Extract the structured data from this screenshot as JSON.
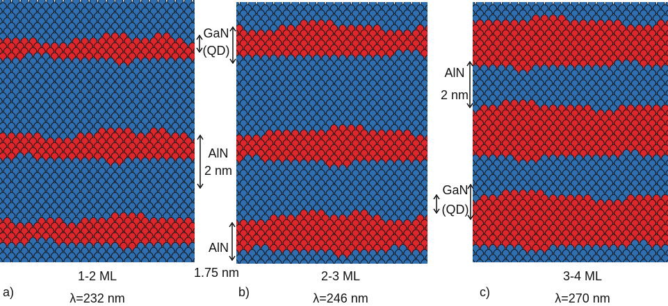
{
  "colors": {
    "gan": "#e0262a",
    "aln": "#2d6fb0",
    "atom_stroke": "#0a0a0a",
    "background": "#ffffff"
  },
  "panels": [
    {
      "letter": "a)",
      "ml": "1-2 ML",
      "wavelength": "λ=232 nm",
      "qd_rows": [
        [
          8,
          11
        ],
        [
          27,
          31
        ],
        [
          44,
          48
        ]
      ]
    },
    {
      "letter": "b)",
      "ml": "2-3 ML",
      "wavelength": "λ=246 nm",
      "qd_rows": [
        [
          5,
          10
        ],
        [
          26,
          31
        ],
        [
          43,
          49
        ]
      ]
    },
    {
      "letter": "c)",
      "ml": "3-4 ML",
      "wavelength": "λ=270 nm",
      "qd_rows": [
        [
          4,
          12
        ],
        [
          21,
          30
        ],
        [
          39,
          48
        ]
      ]
    }
  ],
  "annotations": {
    "gan_qd_a": {
      "line1": "GaN",
      "line2": "(QD)"
    },
    "aln_2nm_a": {
      "line1": "AlN",
      "line2": "2 nm"
    },
    "aln_bottom": {
      "line1": "AlN",
      "line2": "1.75 nm"
    },
    "aln_2nm_c": {
      "line1": "AlN",
      "line2": "2 nm"
    },
    "gan_qd_c": {
      "line1": "GaN",
      "line2": "(QD)"
    }
  }
}
